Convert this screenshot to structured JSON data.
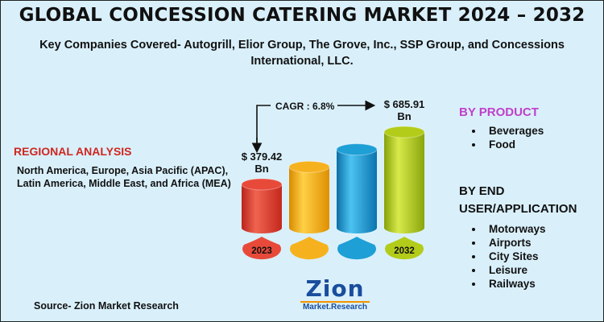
{
  "title": "GLOBAL CONCESSION CATERING MARKET 2024 – 2032",
  "subtitle": "Key Companies Covered- Autogrill, Elior Group, The Grove, Inc., SSP Group, and Concessions International, LLC.",
  "regional": {
    "heading": "REGIONAL ANALYSIS",
    "text": "North America, Europe, Asia Pacific (APAC), Latin America, Middle East, and Africa (MEA)"
  },
  "source": "Source- Zion Market Research",
  "logo": {
    "top": "Zion",
    "bottom": "Market.Research"
  },
  "segments": {
    "product_heading": "BY PRODUCT",
    "product_items": [
      "Beverages",
      "Food"
    ],
    "enduse_heading": "BY END USER/APPLICATION",
    "enduse_items": [
      "Motorways",
      "Airports",
      "City Sites",
      "Leisure",
      "Railways"
    ]
  },
  "chart_data": {
    "type": "bar",
    "categories": [
      "2023",
      "",
      "",
      "2032"
    ],
    "values": [
      379.42,
      null,
      null,
      685.91
    ],
    "value_labels": [
      "$ 379.42\nBn",
      "",
      "",
      "$ 685.91\nBn"
    ],
    "cagr_label": "CAGR : 6.8%",
    "colors": [
      "#e84a3a",
      "#f6b21e",
      "#1e9fd6",
      "#b3cc1a"
    ]
  }
}
